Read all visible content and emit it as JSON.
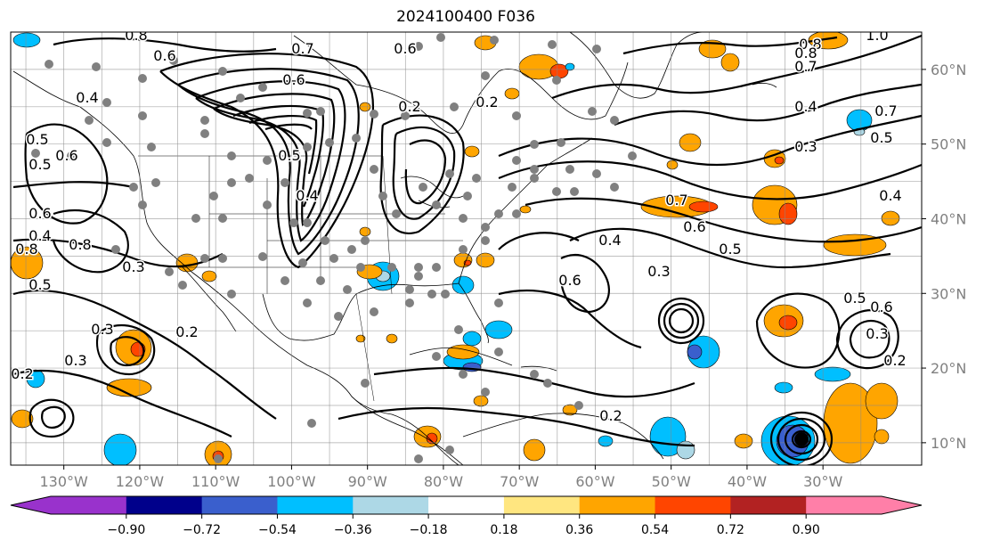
{
  "title": "2024100400 F036",
  "map": {
    "projection": "equirectangular",
    "lon_range": [
      -137,
      -17
    ],
    "lat_range": [
      7,
      65
    ],
    "x_ticks": [
      "130°W",
      "120°W",
      "110°W",
      "100°W",
      "90°W",
      "80°W",
      "70°W",
      "60°W",
      "50°W",
      "40°W",
      "30°W"
    ],
    "y_ticks": [
      "60°N",
      "50°N",
      "40°N",
      "30°N",
      "20°N",
      "10°N"
    ],
    "tick_color": "#808080",
    "contour_labels": [
      "0.8",
      "0.6",
      "0.7",
      "0.6",
      "0.4",
      "0.6",
      "0.8",
      "0.4",
      "0.5",
      "0.5",
      "0.6",
      "0.8",
      "0.3",
      "0.5",
      "0.2",
      "0.3",
      "0.3",
      "0.2",
      "0.6",
      "0.5",
      "0.8",
      "0.7",
      "0.4",
      "0.3",
      "0.5",
      "0.4",
      "0.7",
      "0.6",
      "0.5",
      "0.4",
      "0.3",
      "0.6",
      "0.5",
      "0.4",
      "0.2",
      "0.2",
      "1.0",
      "0.8",
      "0.7",
      "0.6",
      "0.5",
      "0.3",
      "0.2",
      "0.2"
    ]
  },
  "colorbar": {
    "tick_labels": [
      "−0.90",
      "−0.72",
      "−0.54",
      "−0.36",
      "−0.18",
      "0.18",
      "0.36",
      "0.54",
      "0.72",
      "0.90"
    ],
    "colors": [
      "#9932cc",
      "#00008b",
      "#3a5fcd",
      "#00bfff",
      "#add8e6",
      "#ffffff",
      "#ffe680",
      "#ffa500",
      "#ff4500",
      "#b22222",
      "#ff7fa8"
    ],
    "extend": "both"
  }
}
